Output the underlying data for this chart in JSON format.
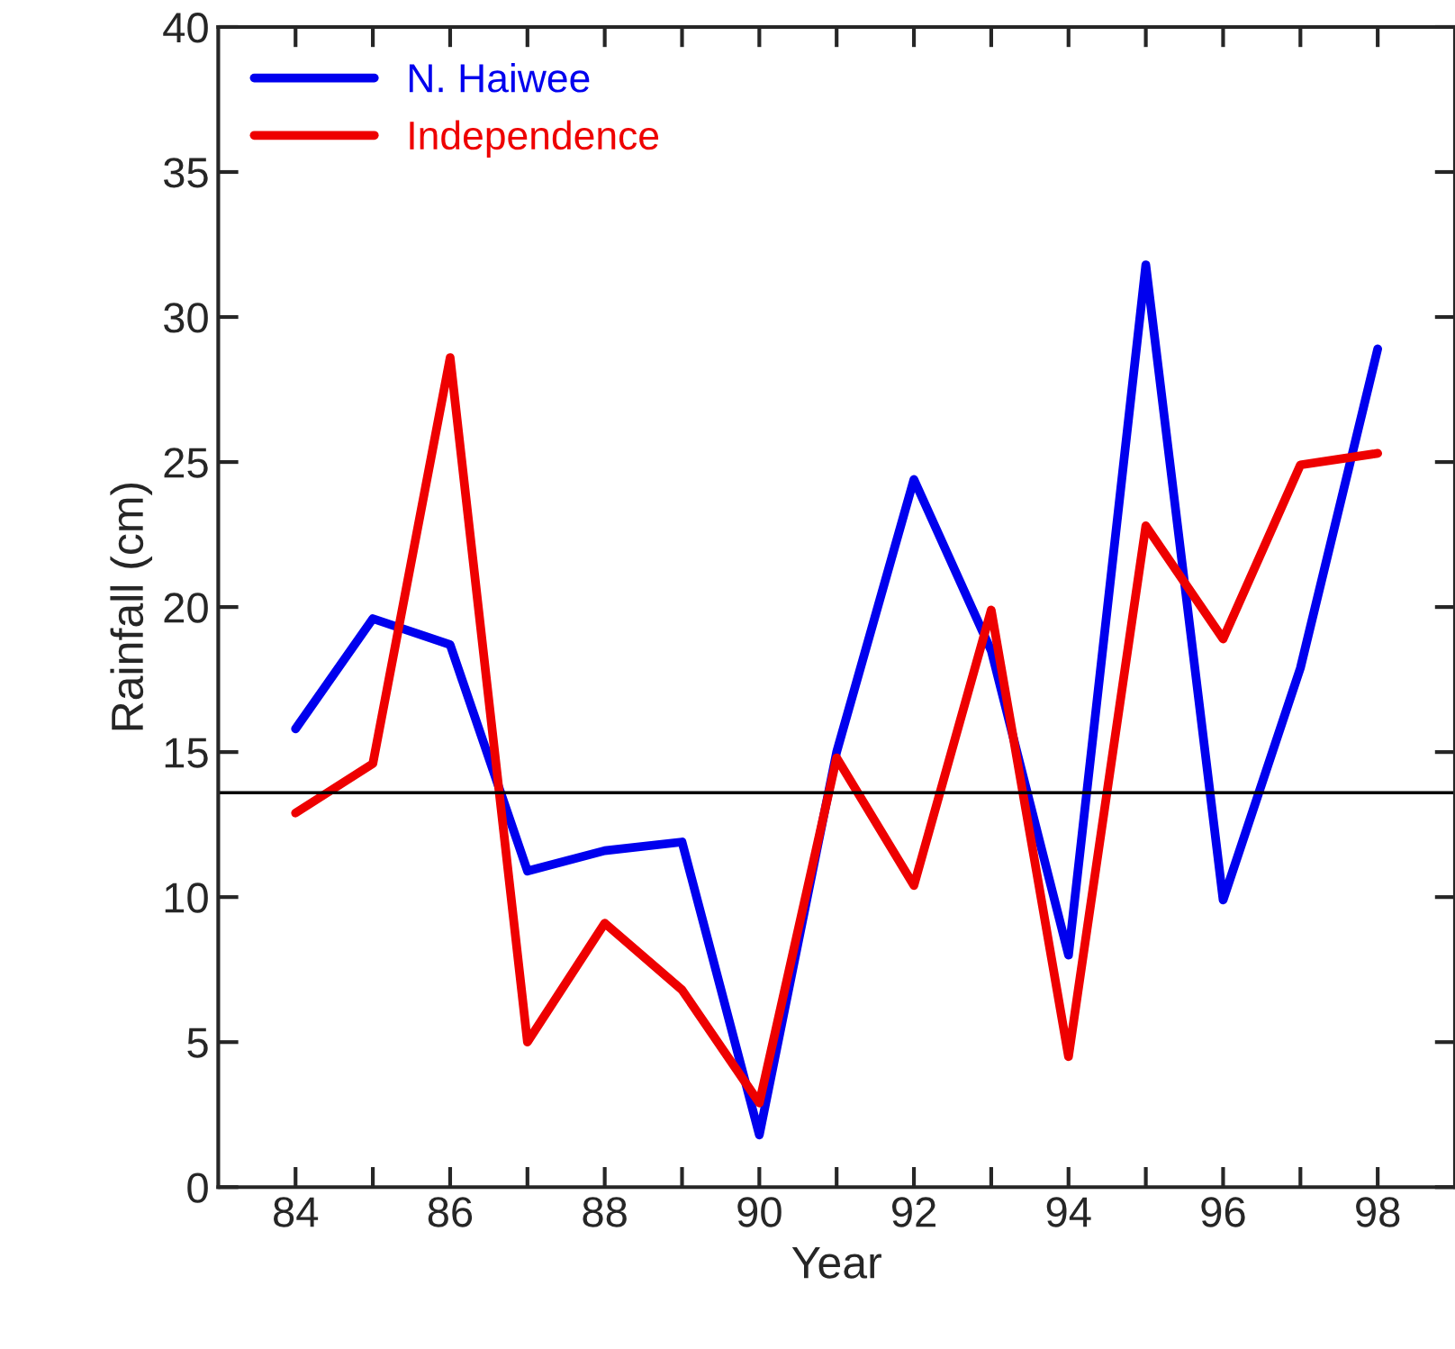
{
  "chart_data": {
    "type": "line",
    "xlabel": "Year",
    "ylabel": "Rainfall (cm)",
    "x": [
      84,
      85,
      86,
      87,
      88,
      89,
      90,
      91,
      92,
      93,
      94,
      95,
      96,
      97,
      98
    ],
    "series": [
      {
        "name": "N. Haiwee",
        "color": "#0000ee",
        "values": [
          15.8,
          19.6,
          18.7,
          10.9,
          11.6,
          11.9,
          1.8,
          15.0,
          24.4,
          18.5,
          8.0,
          31.8,
          9.9,
          17.9,
          28.9
        ]
      },
      {
        "name": "Independence",
        "color": "#ee0000",
        "values": [
          12.9,
          14.6,
          28.6,
          5.0,
          9.1,
          6.8,
          2.9,
          14.8,
          10.4,
          19.9,
          4.5,
          22.8,
          18.9,
          24.9,
          25.3
        ]
      }
    ],
    "ref_lines": [
      {
        "axis": "y",
        "value": 13.6,
        "color": "#000000"
      }
    ],
    "xlim": [
      83,
      99
    ],
    "xticks": [
      84,
      {
        "value": 85,
        "label": null
      },
      86,
      {
        "value": 87,
        "label": null
      },
      88,
      {
        "value": 89,
        "label": null
      },
      90,
      {
        "value": 91,
        "label": null
      },
      92,
      {
        "value": 93,
        "label": null
      },
      94,
      {
        "value": 95,
        "label": null
      },
      96,
      {
        "value": 97,
        "label": null
      },
      98
    ],
    "ylim": [
      0,
      40
    ],
    "yticks": [
      0,
      5,
      10,
      15,
      20,
      25,
      30,
      35,
      40
    ],
    "grid": false,
    "legend": "top left"
  }
}
